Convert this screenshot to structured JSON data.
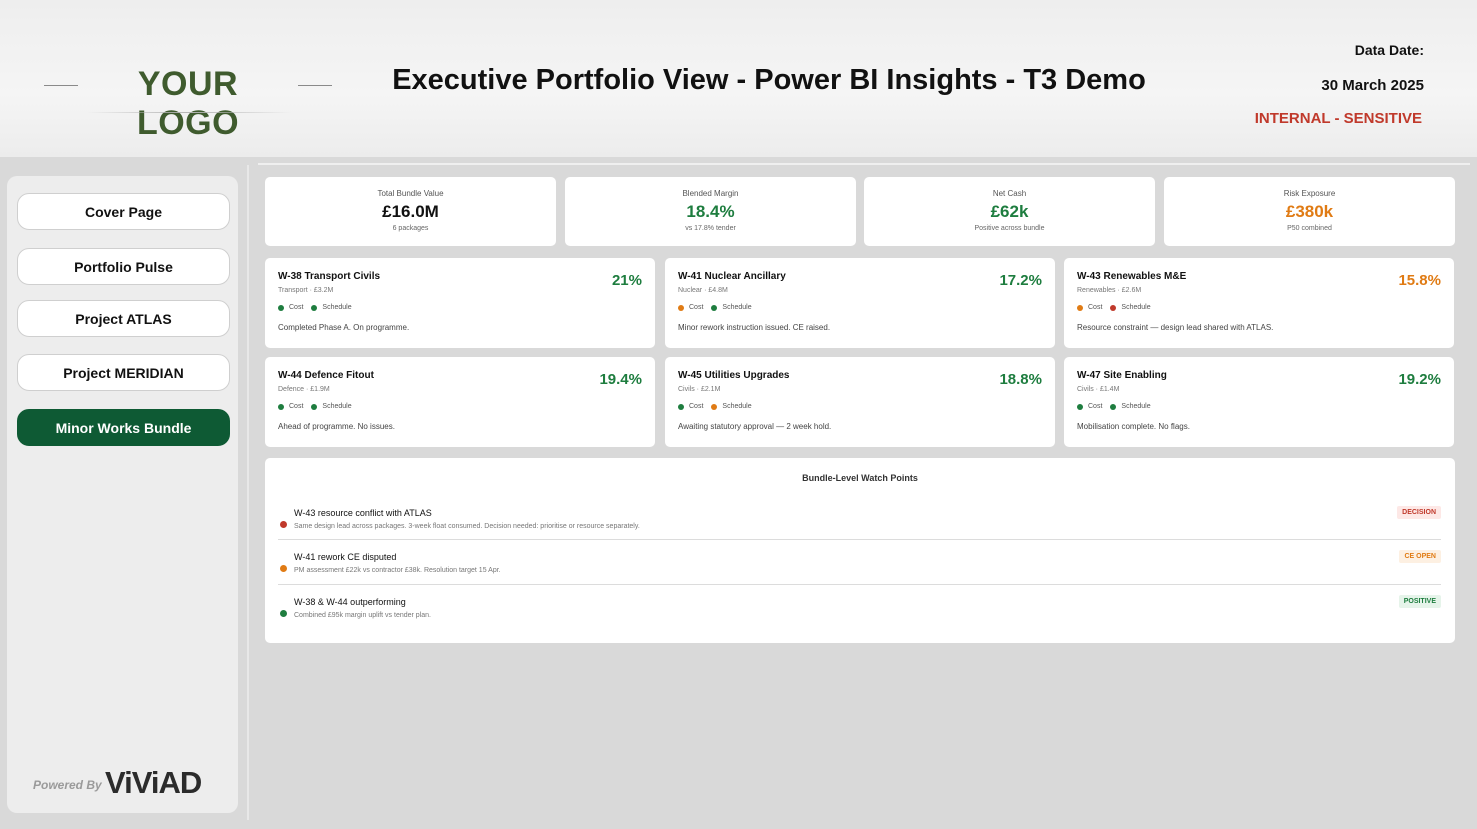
{
  "header": {
    "logo_text": "YOUR LOGO",
    "title": "Executive Portfolio View - Power BI Insights - T3 Demo",
    "date_label": "Data Date:",
    "date_value": "30 March 2025",
    "sensitivity": "INTERNAL - SENSITIVE"
  },
  "sidebar": {
    "items": [
      {
        "label": "Cover Page",
        "active": false
      },
      {
        "label": "Portfolio Pulse",
        "active": false
      },
      {
        "label": "Project ATLAS",
        "active": false
      },
      {
        "label": "Project MERIDIAN",
        "active": false
      },
      {
        "label": "Minor Works Bundle",
        "active": true
      }
    ],
    "powered_by": "Powered By",
    "brand": "ViViAD"
  },
  "colors": {
    "green": "#1e7d3f",
    "amber": "#e07b14",
    "red": "#c0392b",
    "active_nav": "#0e5a34"
  },
  "kpis": [
    {
      "label": "Total Bundle Value",
      "value": "£16.0M",
      "sub": "6 packages",
      "color": "#111111"
    },
    {
      "label": "Blended Margin",
      "value": "18.4%",
      "sub": "vs 17.8% tender",
      "color": "#1e7d3f"
    },
    {
      "label": "Net Cash",
      "value": "£62k",
      "sub": "Positive across bundle",
      "color": "#1e7d3f"
    },
    {
      "label": "Risk Exposure",
      "value": "£380k",
      "sub": "P50 combined",
      "color": "#e07b14"
    }
  ],
  "packages": [
    {
      "name": "W-38 Transport Civils",
      "meta": "Transport · £3.2M",
      "pct": "21%",
      "pct_color": "#1e7d3f",
      "cost_label": "Cost",
      "cost_color": "#1e7d3f",
      "schedule_label": "Schedule",
      "schedule_color": "#1e7d3f",
      "note": "Completed Phase A. On programme."
    },
    {
      "name": "W-41 Nuclear Ancillary",
      "meta": "Nuclear · £4.8M",
      "pct": "17.2%",
      "pct_color": "#1e7d3f",
      "cost_label": "Cost",
      "cost_color": "#e07b14",
      "schedule_label": "Schedule",
      "schedule_color": "#1e7d3f",
      "note": "Minor rework instruction issued. CE raised."
    },
    {
      "name": "W-43 Renewables M&E",
      "meta": "Renewables · £2.6M",
      "pct": "15.8%",
      "pct_color": "#e07b14",
      "cost_label": "Cost",
      "cost_color": "#e07b14",
      "schedule_label": "Schedule",
      "schedule_color": "#c0392b",
      "note": "Resource constraint — design lead shared with ATLAS."
    },
    {
      "name": "W-44 Defence Fitout",
      "meta": "Defence · £1.9M",
      "pct": "19.4%",
      "pct_color": "#1e7d3f",
      "cost_label": "Cost",
      "cost_color": "#1e7d3f",
      "schedule_label": "Schedule",
      "schedule_color": "#1e7d3f",
      "note": "Ahead of programme. No issues."
    },
    {
      "name": "W-45 Utilities Upgrades",
      "meta": "Civils · £2.1M",
      "pct": "18.8%",
      "pct_color": "#1e7d3f",
      "cost_label": "Cost",
      "cost_color": "#1e7d3f",
      "schedule_label": "Schedule",
      "schedule_color": "#e07b14",
      "note": "Awaiting statutory approval — 2 week hold."
    },
    {
      "name": "W-47 Site Enabling",
      "meta": "Civils · £1.4M",
      "pct": "19.2%",
      "pct_color": "#1e7d3f",
      "cost_label": "Cost",
      "cost_color": "#1e7d3f",
      "schedule_label": "Schedule",
      "schedule_color": "#1e7d3f",
      "note": "Mobilisation complete. No flags."
    }
  ],
  "watch": {
    "title": "Bundle-Level Watch Points",
    "items": [
      {
        "heading": "W-43 resource conflict with ATLAS",
        "detail": "Same design lead across packages. 3-week float consumed. Decision needed: prioritise or resource separately.",
        "dot_color": "#c0392b",
        "badge": "DECISION",
        "badge_fg": "#c0392b",
        "badge_bg": "#fde8e6"
      },
      {
        "heading": "W-41 rework CE disputed",
        "detail": "PM assessment £22k vs contractor £38k. Resolution target 15 Apr.",
        "dot_color": "#e07b14",
        "badge": "CE OPEN",
        "badge_fg": "#e07b14",
        "badge_bg": "#fdf0e2"
      },
      {
        "heading": "W-38 & W-44 outperforming",
        "detail": "Combined £95k margin uplift vs tender plan.",
        "dot_color": "#1e7d3f",
        "badge": "POSITIVE",
        "badge_fg": "#1e7d3f",
        "badge_bg": "#e6f4ea"
      }
    ]
  }
}
